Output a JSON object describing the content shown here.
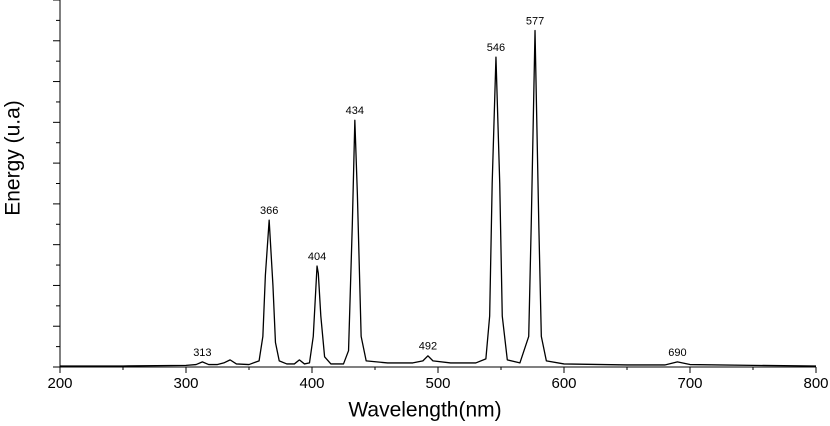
{
  "chart_data": {
    "type": "line",
    "x_label": "Wavelength(nm)",
    "y_label": "Energy (u.a)",
    "x": [
      200,
      250,
      300,
      308,
      313,
      318,
      325,
      330,
      335,
      340,
      350,
      358,
      361,
      363,
      366,
      369,
      371,
      374,
      380,
      386,
      390,
      394,
      398,
      401,
      403,
      404,
      405,
      407,
      410,
      415,
      425,
      429,
      432,
      434,
      436,
      439,
      443,
      460,
      480,
      488,
      492,
      496,
      510,
      530,
      538,
      541,
      543,
      546,
      549,
      551,
      555,
      565,
      572,
      574,
      577,
      580,
      582,
      586,
      600,
      650,
      680,
      690,
      700,
      750,
      800
    ],
    "series": [
      {
        "name": "Energy",
        "color": "#000000",
        "values": [
          0.05,
          0.05,
          0.08,
          0.12,
          0.25,
          0.12,
          0.12,
          0.2,
          0.35,
          0.15,
          0.12,
          0.3,
          1.5,
          4.5,
          7.2,
          4.0,
          1.2,
          0.3,
          0.15,
          0.15,
          0.35,
          0.15,
          0.2,
          1.5,
          3.8,
          4.95,
          4.6,
          2.5,
          0.5,
          0.15,
          0.15,
          0.8,
          7,
          12.1,
          8.5,
          1.5,
          0.3,
          0.2,
          0.2,
          0.3,
          0.55,
          0.3,
          0.2,
          0.2,
          0.4,
          2.5,
          9,
          15.2,
          9,
          2.5,
          0.35,
          0.2,
          1.5,
          7,
          16.5,
          7,
          1.5,
          0.3,
          0.15,
          0.1,
          0.1,
          0.25,
          0.12,
          0.08,
          0.05
        ]
      }
    ],
    "annotations": [
      {
        "text": "313",
        "x": 313,
        "y": 0.25
      },
      {
        "text": "366",
        "x": 366,
        "y": 7.2
      },
      {
        "text": "404",
        "x": 404,
        "y": 4.95
      },
      {
        "text": "434",
        "x": 434,
        "y": 12.1
      },
      {
        "text": "492",
        "x": 492,
        "y": 0.55
      },
      {
        "text": "546",
        "x": 546,
        "y": 15.2
      },
      {
        "text": "577",
        "x": 577,
        "y": 16.5
      },
      {
        "text": "690",
        "x": 690,
        "y": 0.25
      }
    ],
    "xlim": [
      200,
      800
    ],
    "xticks": [
      200,
      300,
      400,
      500,
      600,
      700,
      800
    ],
    "xminor_ticks": [
      250,
      350,
      450,
      550,
      650,
      750
    ],
    "ylim": [
      0,
      18
    ],
    "yticks": [
      0,
      1,
      2,
      3,
      4,
      5,
      6,
      7,
      8,
      9,
      10,
      11,
      12,
      13,
      14,
      15,
      16,
      17,
      18
    ],
    "grid": false
  }
}
